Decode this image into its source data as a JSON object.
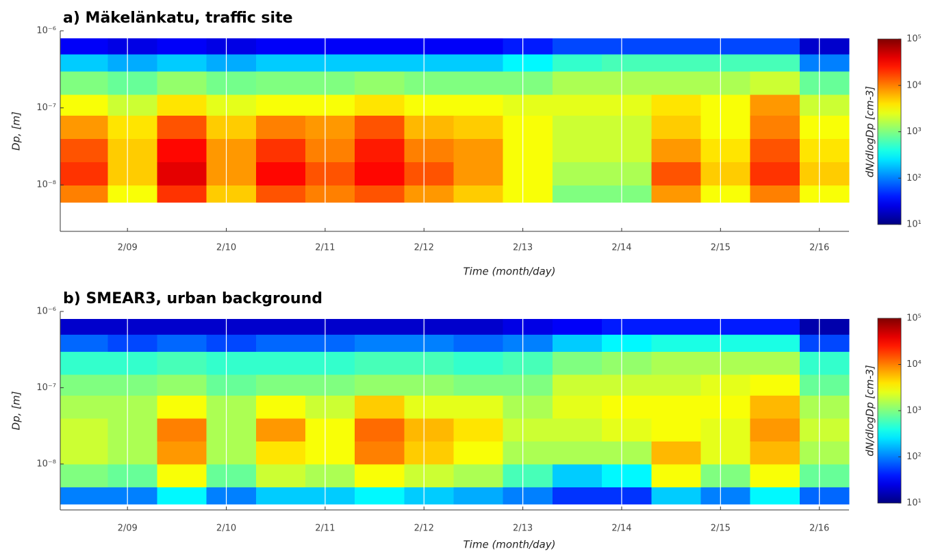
{
  "chart_data": [
    {
      "type": "heatmap",
      "title": "a) Mäkelänkatu, traffic site",
      "xlabel": "Time (month/day)",
      "ylabel": "Dp, [m]",
      "colorbar_label": "dN/dlogDp [cm-3]",
      "colormap": "jet",
      "log_y": true,
      "log_color": true,
      "grid": true,
      "xlim": [
        8.32,
        16.3
      ],
      "ylim": [
        2.5e-09,
        1e-06
      ],
      "clim": [
        10,
        100000
      ],
      "xticks": [
        {
          "value": 9,
          "label": "2/09"
        },
        {
          "value": 10,
          "label": "2/10"
        },
        {
          "value": 11,
          "label": "2/11"
        },
        {
          "value": 12,
          "label": "2/12"
        },
        {
          "value": 13,
          "label": "2/13"
        },
        {
          "value": 14,
          "label": "2/14"
        },
        {
          "value": 15,
          "label": "2/15"
        },
        {
          "value": 16,
          "label": "2/16"
        }
      ],
      "yticks": [
        {
          "value": 1e-08,
          "label": "10⁻⁸"
        },
        {
          "value": 1e-07,
          "label": "10⁻⁷"
        },
        {
          "value": 1e-06,
          "label": "10⁻⁶"
        }
      ],
      "cticks": [
        {
          "value": 10,
          "label": "10¹"
        },
        {
          "value": 100,
          "label": "10²"
        },
        {
          "value": 1000,
          "label": "10³"
        },
        {
          "value": 10000,
          "label": "10⁴"
        },
        {
          "value": 100000,
          "label": "10⁵"
        }
      ],
      "x_edges": [
        8.32,
        8.8,
        9.3,
        9.8,
        10.3,
        10.8,
        11.3,
        11.8,
        12.3,
        12.8,
        13.3,
        13.8,
        14.3,
        14.8,
        15.3,
        15.8,
        16.3
      ],
      "y_edges": [
        6e-09,
        1e-08,
        2e-08,
        4e-08,
        8e-08,
        1.5e-07,
        3e-07,
        5e-07,
        8e-07
      ],
      "z": [
        [
          10000,
          3000,
          20000,
          5000,
          15000,
          10000,
          15000,
          8000,
          5000,
          3000,
          1000,
          1000,
          8000,
          3000,
          10000,
          3000
        ],
        [
          20000,
          5000,
          40000,
          8000,
          30000,
          15000,
          30000,
          15000,
          8000,
          3000,
          1500,
          1500,
          15000,
          5000,
          20000,
          5000
        ],
        [
          15000,
          5000,
          30000,
          8000,
          20000,
          10000,
          25000,
          10000,
          8000,
          3000,
          2000,
          2000,
          8000,
          4000,
          15000,
          4000
        ],
        [
          8000,
          4000,
          15000,
          5000,
          10000,
          8000,
          15000,
          6000,
          5000,
          3000,
          2000,
          2000,
          5000,
          3000,
          10000,
          3000
        ],
        [
          3000,
          2000,
          4000,
          2500,
          3000,
          3000,
          4000,
          3000,
          3000,
          2500,
          2500,
          2500,
          4000,
          3000,
          8000,
          2000
        ],
        [
          1000,
          800,
          1200,
          900,
          1000,
          1000,
          1200,
          1000,
          1000,
          1000,
          1500,
          1500,
          1500,
          1500,
          2000,
          800
        ],
        [
          200,
          150,
          200,
          150,
          200,
          200,
          200,
          200,
          200,
          300,
          500,
          600,
          600,
          600,
          600,
          100
        ],
        [
          30,
          25,
          30,
          25,
          30,
          30,
          30,
          30,
          30,
          40,
          60,
          60,
          60,
          60,
          60,
          20
        ]
      ]
    },
    {
      "type": "heatmap",
      "title": "b) SMEAR3, urban background",
      "xlabel": "Time (month/day)",
      "ylabel": "Dp, [m]",
      "colorbar_label": "dN/dlogDp [cm-3]",
      "colormap": "jet",
      "log_y": true,
      "log_color": true,
      "grid": true,
      "xlim": [
        8.32,
        16.3
      ],
      "ylim": [
        2.5e-09,
        1e-06
      ],
      "clim": [
        10,
        100000
      ],
      "xticks": [
        {
          "value": 9,
          "label": "2/09"
        },
        {
          "value": 10,
          "label": "2/10"
        },
        {
          "value": 11,
          "label": "2/11"
        },
        {
          "value": 12,
          "label": "2/12"
        },
        {
          "value": 13,
          "label": "2/13"
        },
        {
          "value": 14,
          "label": "2/14"
        },
        {
          "value": 15,
          "label": "2/15"
        },
        {
          "value": 16,
          "label": "2/16"
        }
      ],
      "yticks": [
        {
          "value": 1e-08,
          "label": "10⁻⁸"
        },
        {
          "value": 1e-07,
          "label": "10⁻⁷"
        },
        {
          "value": 1e-06,
          "label": "10⁻⁶"
        }
      ],
      "cticks": [
        {
          "value": 10,
          "label": "10¹"
        },
        {
          "value": 100,
          "label": "10²"
        },
        {
          "value": 1000,
          "label": "10³"
        },
        {
          "value": 10000,
          "label": "10⁴"
        },
        {
          "value": 100000,
          "label": "10⁵"
        }
      ],
      "x_edges": [
        8.32,
        8.8,
        9.3,
        9.8,
        10.3,
        10.8,
        11.3,
        11.8,
        12.3,
        12.8,
        13.3,
        13.8,
        14.3,
        14.8,
        15.3,
        15.8,
        16.3
      ],
      "y_edges": [
        3e-09,
        5e-09,
        1e-08,
        2e-08,
        4e-08,
        8e-08,
        1.5e-07,
        3e-07,
        5e-07,
        8e-07
      ],
      "z": [
        [
          100,
          100,
          300,
          100,
          200,
          200,
          300,
          200,
          150,
          100,
          50,
          50,
          200,
          100,
          300,
          80
        ],
        [
          1000,
          800,
          3000,
          800,
          2000,
          1500,
          3000,
          2000,
          1500,
          600,
          200,
          300,
          3000,
          1000,
          3000,
          800
        ],
        [
          2000,
          1500,
          8000,
          1500,
          4000,
          3000,
          10000,
          5000,
          3000,
          1500,
          1500,
          1500,
          6000,
          2500,
          6000,
          1500
        ],
        [
          2000,
          1500,
          10000,
          1500,
          8000,
          3000,
          12000,
          6000,
          4000,
          2000,
          2000,
          2500,
          3000,
          2500,
          8000,
          2000
        ],
        [
          1500,
          1500,
          3000,
          1500,
          3000,
          2000,
          5000,
          2500,
          2500,
          1500,
          2500,
          3000,
          3000,
          3000,
          6000,
          1500
        ],
        [
          1000,
          1000,
          1200,
          800,
          1000,
          1000,
          1200,
          1200,
          1000,
          1000,
          2000,
          2000,
          2000,
          2500,
          3000,
          800
        ],
        [
          500,
          500,
          600,
          500,
          500,
          500,
          600,
          600,
          500,
          600,
          1000,
          1200,
          1500,
          1500,
          1500,
          500
        ],
        [
          80,
          60,
          80,
          60,
          80,
          80,
          100,
          100,
          80,
          100,
          200,
          300,
          400,
          400,
          400,
          60
        ],
        [
          20,
          20,
          20,
          20,
          20,
          20,
          20,
          20,
          20,
          25,
          30,
          40,
          40,
          40,
          40,
          15
        ]
      ]
    }
  ]
}
